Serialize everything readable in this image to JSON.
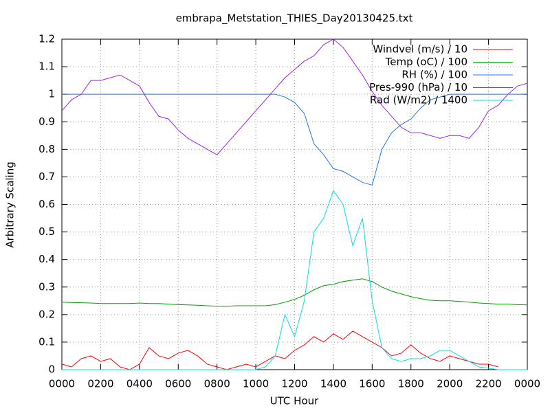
{
  "chart_data": {
    "type": "line",
    "title": "embrapa_Metstation_THIES_Day20130425.txt",
    "x_label": "UTC Hour",
    "y_label": "Arbitrary Scaling",
    "x": [
      0,
      0.5,
      1,
      1.5,
      2,
      2.5,
      3,
      3.5,
      4,
      4.5,
      5,
      5.5,
      6,
      6.5,
      7,
      7.5,
      8,
      8.5,
      9,
      9.5,
      10,
      10.5,
      11,
      11.5,
      12,
      12.5,
      13,
      13.5,
      14,
      14.5,
      15,
      15.5,
      16,
      16.5,
      17,
      17.5,
      18,
      18.5,
      19,
      19.5,
      20,
      20.5,
      21,
      21.5,
      22,
      22.5,
      23,
      23.5,
      24
    ],
    "xlim": [
      0,
      24
    ],
    "xticks": [
      {
        "value": 0,
        "label": "0000"
      },
      {
        "value": 2,
        "label": "0200"
      },
      {
        "value": 4,
        "label": "0400"
      },
      {
        "value": 6,
        "label": "0600"
      },
      {
        "value": 8,
        "label": "0800"
      },
      {
        "value": 10,
        "label": "1000"
      },
      {
        "value": 12,
        "label": "1200"
      },
      {
        "value": 14,
        "label": "1400"
      },
      {
        "value": 16,
        "label": "1600"
      },
      {
        "value": 18,
        "label": "1800"
      },
      {
        "value": 20,
        "label": "2000"
      },
      {
        "value": 22,
        "label": "2200"
      },
      {
        "value": 24,
        "label": "0000"
      }
    ],
    "ylim": [
      0,
      1.2
    ],
    "yticks": [
      0,
      0.1,
      0.2,
      0.3,
      0.4,
      0.5,
      0.6,
      0.7,
      0.8,
      0.9,
      1,
      1.1,
      1.2
    ],
    "grid": true,
    "legend": "top-right",
    "series": [
      {
        "name": "Windvel (m/s) / 10",
        "color": "#ff0000",
        "values": [
          0.02,
          0.01,
          0.04,
          0.05,
          0.03,
          0.04,
          0.01,
          0.0,
          0.02,
          0.08,
          0.05,
          0.04,
          0.06,
          0.07,
          0.05,
          0.02,
          0.01,
          0.0,
          0.01,
          0.02,
          0.01,
          0.03,
          0.05,
          0.04,
          0.07,
          0.09,
          0.12,
          0.1,
          0.13,
          0.11,
          0.14,
          0.12,
          0.1,
          0.08,
          0.05,
          0.06,
          0.09,
          0.06,
          0.04,
          0.03,
          0.05,
          0.04,
          0.03,
          0.02,
          0.02,
          0.01,
          null,
          null,
          null
        ]
      },
      {
        "name": "Temp (oC) / 100",
        "color": "#00a000",
        "values": [
          0.245,
          0.244,
          0.243,
          0.242,
          0.24,
          0.24,
          0.24,
          0.24,
          0.242,
          0.24,
          0.24,
          0.238,
          0.236,
          0.235,
          0.234,
          0.232,
          0.23,
          0.23,
          0.232,
          0.232,
          0.232,
          0.232,
          0.236,
          0.245,
          0.255,
          0.27,
          0.29,
          0.305,
          0.31,
          0.32,
          0.325,
          0.33,
          0.32,
          0.3,
          0.285,
          0.275,
          0.265,
          0.258,
          0.252,
          0.25,
          0.25,
          0.248,
          0.245,
          0.242,
          0.24,
          0.238,
          0.238,
          0.236,
          0.235
        ]
      },
      {
        "name": "RH (%) / 100",
        "color": "#1e78e6",
        "values": [
          1,
          1,
          1,
          1,
          1,
          1,
          1,
          1,
          1,
          1,
          1,
          1,
          1,
          1,
          1,
          1,
          1,
          1,
          1,
          1,
          1,
          1,
          1,
          0.99,
          0.97,
          0.93,
          0.82,
          0.78,
          0.73,
          0.72,
          0.7,
          0.68,
          0.67,
          0.8,
          0.86,
          0.89,
          0.91,
          0.95,
          0.98,
          0.99,
          1.0,
          1,
          1,
          1,
          1,
          1,
          1,
          1,
          1
        ]
      },
      {
        "name": "Pres-990 (hPa) / 10",
        "color": "#a020f0",
        "values": [
          0.94,
          0.98,
          1.0,
          1.05,
          1.05,
          1.06,
          1.07,
          1.05,
          1.03,
          0.97,
          0.92,
          0.91,
          0.87,
          0.84,
          0.82,
          0.8,
          0.78,
          0.82,
          0.86,
          0.9,
          0.94,
          0.98,
          1.02,
          1.06,
          1.09,
          1.12,
          1.14,
          1.18,
          1.2,
          1.17,
          1.12,
          1.07,
          1.01,
          0.96,
          0.92,
          0.88,
          0.86,
          0.86,
          0.85,
          0.84,
          0.85,
          0.85,
          0.84,
          0.88,
          0.94,
          0.96,
          1.0,
          1.03,
          1.04
        ]
      },
      {
        "name": "Rad (W/m2) / 1400",
        "color": "#00e0e0",
        "values": [
          0,
          0,
          0,
          0,
          0,
          0,
          0,
          0,
          0,
          0,
          0,
          0,
          0,
          0,
          0,
          0,
          0,
          0,
          0,
          0,
          0,
          0.01,
          0.05,
          0.2,
          0.12,
          0.25,
          0.5,
          0.55,
          0.65,
          0.6,
          0.45,
          0.55,
          0.25,
          0.08,
          0.04,
          0.03,
          0.04,
          0.04,
          0.05,
          0.07,
          0.07,
          0.05,
          0.03,
          0.01,
          0.005,
          0,
          0,
          0,
          0
        ]
      }
    ]
  }
}
